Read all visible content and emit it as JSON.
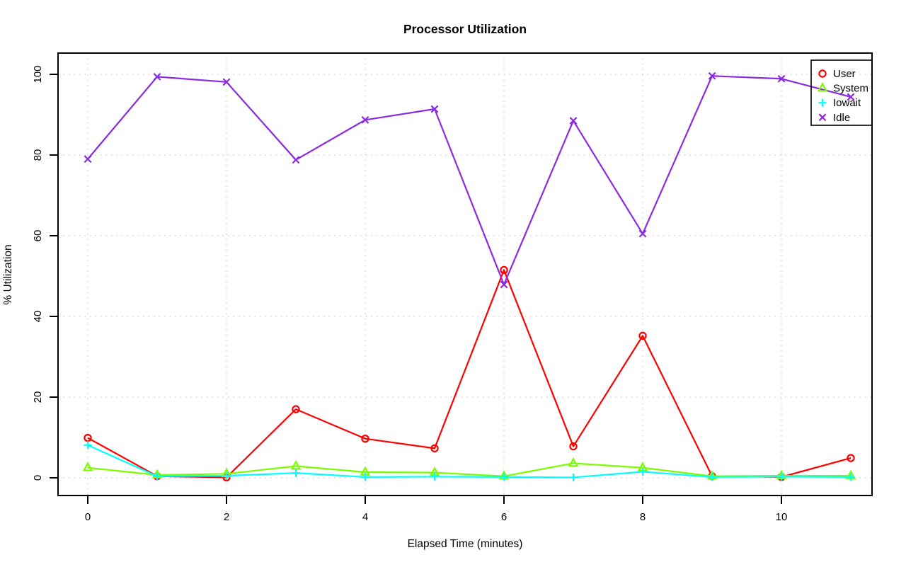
{
  "chart_data": {
    "type": "line",
    "title": "Processor Utilization",
    "xlabel": "Elapsed Time (minutes)",
    "ylabel": "% Utilization",
    "x": [
      0,
      1,
      2,
      3,
      4,
      5,
      6,
      7,
      8,
      9,
      10,
      11
    ],
    "xticks": [
      0,
      2,
      4,
      6,
      8,
      10
    ],
    "yticks": [
      0,
      20,
      40,
      60,
      80,
      100
    ],
    "xlim": [
      0,
      11
    ],
    "ylim": [
      0,
      100
    ],
    "grid": "dotted-lightgray-at-ticks",
    "legend_position": "topright",
    "legend_transparent": true,
    "background_color": "#ffffff",
    "axis_color": "#000000",
    "grid_color": "#d3d3d3",
    "series": [
      {
        "name": "User",
        "color": "#ff0000",
        "marker": "circle",
        "values": [
          9.9,
          0.4,
          0.1,
          17.0,
          9.7,
          7.3,
          51.5,
          7.8,
          35.2,
          0.4,
          0.2,
          4.9
        ]
      },
      {
        "name": "System",
        "color": "#7cfc00",
        "marker": "triangle",
        "values": [
          2.5,
          0.7,
          1.0,
          2.9,
          1.4,
          1.3,
          0.4,
          3.6,
          2.5,
          0.4,
          0.5,
          0.5
        ]
      },
      {
        "name": "Iowait",
        "color": "#00ffff",
        "marker": "plus",
        "values": [
          8.1,
          0.4,
          0.5,
          1.2,
          0.2,
          0.3,
          0.2,
          0.1,
          1.5,
          0.2,
          0.3,
          0.2
        ]
      },
      {
        "name": "Idle",
        "color": "#8a2be2",
        "marker": "x",
        "values": [
          79.0,
          99.4,
          98.1,
          78.8,
          88.7,
          91.4,
          47.9,
          88.5,
          60.5,
          99.6,
          98.9,
          94.4
        ]
      }
    ]
  }
}
